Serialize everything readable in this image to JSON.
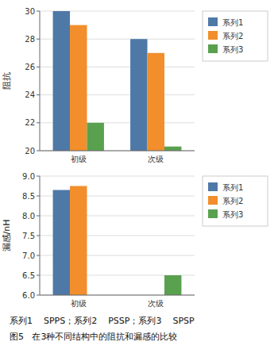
{
  "chart_data": [
    {
      "type": "bar",
      "y_label": "阻抗",
      "categories": [
        "初级",
        "次级"
      ],
      "series": [
        {
          "name": "系列1",
          "values": [
            30,
            28
          ]
        },
        {
          "name": "系列2",
          "values": [
            29,
            27
          ]
        },
        {
          "name": "系列3",
          "values": [
            22,
            20.3
          ]
        }
      ],
      "ylim": [
        20,
        30
      ],
      "yticks": [
        20,
        22,
        24,
        26,
        28,
        30
      ],
      "grid": true,
      "legend": "right"
    },
    {
      "type": "bar",
      "y_label": "漏感/nH",
      "categories": [
        "初级",
        "次级"
      ],
      "series": [
        {
          "name": "系列1",
          "values": [
            8.65,
            6.0
          ]
        },
        {
          "name": "系列2",
          "values": [
            8.75,
            6.0
          ]
        },
        {
          "name": "系列3",
          "values": [
            6.0,
            6.5
          ]
        }
      ],
      "ylim": [
        6,
        9
      ],
      "yticks": [
        {
          "value": 6,
          "label": "6.0"
        },
        6.5,
        {
          "value": 7,
          "label": "7.0"
        },
        7.5,
        {
          "value": 8,
          "label": "8.0"
        },
        8.5,
        {
          "value": 9,
          "label": "9.0"
        }
      ],
      "grid": true,
      "legend": "right",
      "annotations": [
        "系列1    SPPS；系列2    PSSP；系列3    SPSP",
        "图5   在3种不同结构中的阻抗和漏感的比较"
      ]
    }
  ]
}
